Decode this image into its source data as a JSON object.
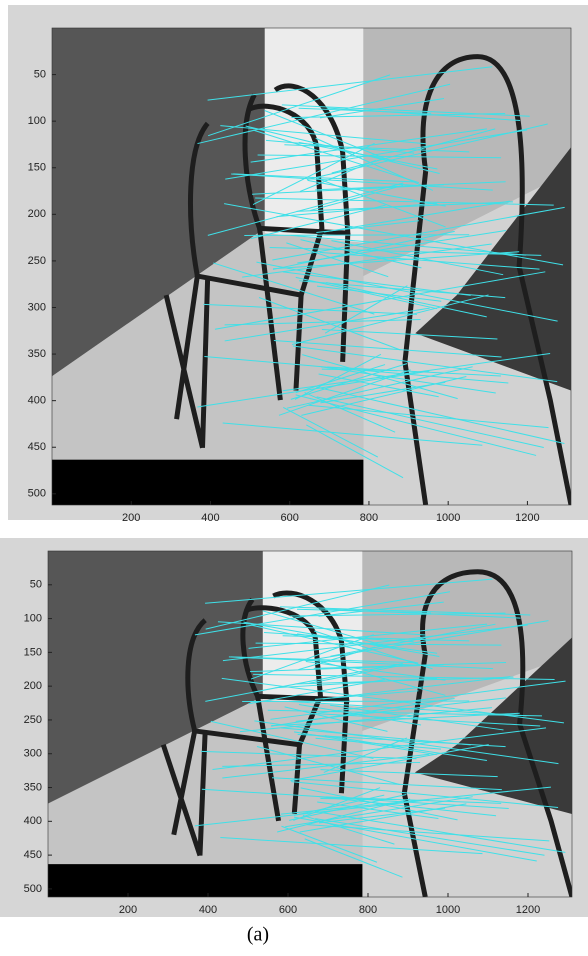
{
  "chart_data": [
    {
      "type": "image",
      "xlim": [
        0,
        1310
      ],
      "ylim": [
        0,
        512
      ],
      "yreversed": true,
      "xticks": [
        200,
        400,
        600,
        800,
        1000,
        1200
      ],
      "yticks": [
        50,
        100,
        150,
        200,
        250,
        300,
        350,
        400,
        450,
        500
      ]
    },
    {
      "type": "image",
      "xlim": [
        0,
        1310
      ],
      "ylim": [
        0,
        512
      ],
      "yreversed": true,
      "xticks": [
        200,
        400,
        600,
        800,
        1000,
        1200
      ],
      "yticks": [
        50,
        100,
        150,
        200,
        250,
        300,
        350,
        400,
        450,
        500
      ]
    }
  ],
  "caption": "(a)"
}
